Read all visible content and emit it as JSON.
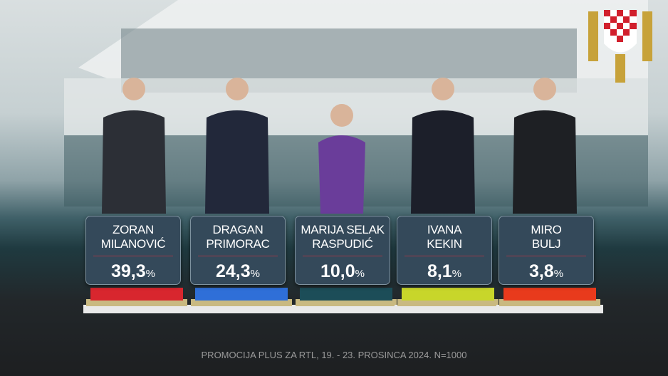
{
  "source": "PROMOCIJA PLUS ZA RTL, 19. - 23. PROSINCA 2024. N=1000",
  "percent_sign": "%",
  "logo": "crest-icon",
  "chart_data": {
    "type": "bar",
    "categories": [
      "ZORAN MILANOVIĆ",
      "DRAGAN PRIMORAC",
      "MARIJA SELAK RASPUDIĆ",
      "IVANA KEKIN",
      "MIRO BULJ"
    ],
    "values": [
      39.3,
      24.3,
      10.0,
      8.1,
      3.8
    ],
    "labels": [
      "39,3",
      "24,3",
      "10,0",
      "8,1",
      "3,8"
    ],
    "name_lines": [
      [
        "ZORAN",
        "MILANOVIĆ"
      ],
      [
        "DRAGAN",
        "PRIMORAC"
      ],
      [
        "MARIJA SELAK",
        "RASPUDIĆ"
      ],
      [
        "IVANA",
        "KEKIN"
      ],
      [
        "MIRO",
        "BULJ"
      ]
    ],
    "colors": [
      "#d8262e",
      "#2f6fd8",
      "#1c4d58",
      "#c8d62a",
      "#e83a1c"
    ],
    "unit": "%"
  },
  "people_colors": [
    "#2c2f36",
    "#22283a",
    "#6a3d9a",
    "#1c1f2a",
    "#1e2024"
  ]
}
